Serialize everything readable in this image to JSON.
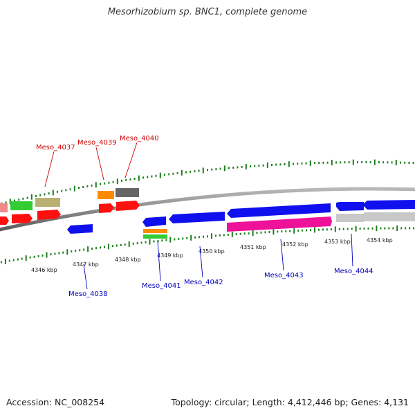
{
  "title": "Mesorhizobium sp. BNC1, complete genome",
  "accession": "Accession: NC_008254",
  "summary": "Topology: circular; Length: 4,412,446 bp; Genes: 4,131",
  "ruler_labels": [
    "4346 kbp",
    "4347 kbp",
    "4348 kbp",
    "4349 kbp",
    "4350 kbp",
    "4351 kbp",
    "4352 kbp",
    "4353 kbp",
    "4354 kbp"
  ],
  "gene_labels_top": [
    "Meso_4037",
    "Meso_4039",
    "Meso_4040"
  ],
  "gene_labels_bottom": [
    "Meso_4038",
    "Meso_4041",
    "Meso_4042",
    "Meso_4043",
    "Meso_4044"
  ],
  "colors": {
    "top_label": "#cc0000",
    "bottom_label": "#0000bb",
    "tick": "#1e7d1e",
    "backbone": "#888888",
    "red": "#ff1010",
    "blue": "#1010ee",
    "magenta": "#ee1199",
    "grey": "#c8c8c8",
    "pink": "#f08a8a",
    "green": "#33cc33",
    "olive": "#b8b070",
    "orange": "#ff8c00",
    "darkgrey": "#666666"
  }
}
